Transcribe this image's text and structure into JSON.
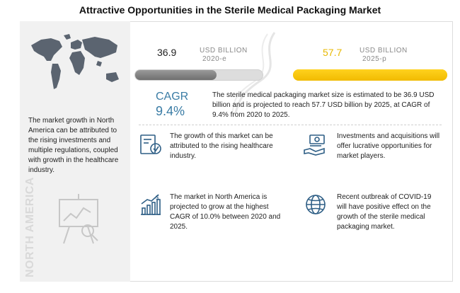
{
  "title": "Attractive Opportunities in the Sterile Medical Packaging Market",
  "left_panel": {
    "description": "The market growth in North America can be attributed to the rising investments and multiple regulations, coupled with growth in the healthcare industry.",
    "region_label": "NORTH AMERICA"
  },
  "market": {
    "value_2020": "36.9",
    "unit_2020_line1": "USD BILLION",
    "unit_2020_line2": "2020-e",
    "value_2025": "57.7",
    "unit_2025_line1": "USD BILLION",
    "unit_2025_line2": "2025-p",
    "bar_2020_fill_fraction": 0.64,
    "bar_2025_fill_fraction": 1.0,
    "cagr_label": "CAGR",
    "cagr_value": "9.4%",
    "summary": "The sterile medical packaging market size is estimated to be 36.9 USD billion and is projected to reach 57.7 USD billion by 2025, at CAGR of 9.4% from 2020 to 2025."
  },
  "facts": [
    {
      "icon": "healthcare-growth-icon",
      "text": "The growth of this market can be attributed to the rising healthcare industry."
    },
    {
      "icon": "investment-money-icon",
      "text": "Investments and acquisitions will offer lucrative opportunities for market players."
    },
    {
      "icon": "growth-chart-icon",
      "text": "The market in North America is projected to grow at the highest CAGR of 10.0% between 2020 and 2025."
    },
    {
      "icon": "globe-virus-icon",
      "text": "Recent outbreak of COVID-19 will have positive effect on the growth of the sterile medical packaging market."
    }
  ],
  "colors": {
    "accent_blue": "#3a7ca5",
    "bar_2025": "#f5c400",
    "bar_2020": "#7a7a7a",
    "panel_bg": "#f1f1f1"
  }
}
